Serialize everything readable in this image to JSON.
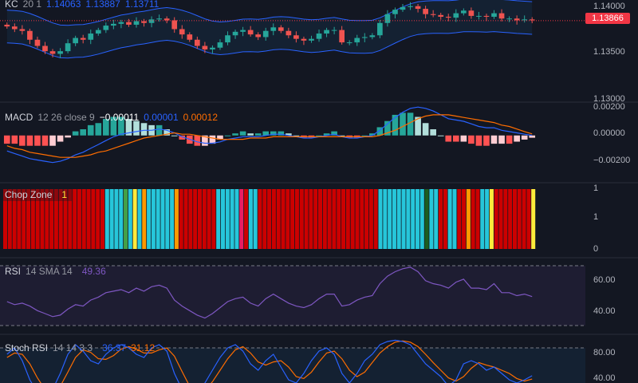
{
  "colors": {
    "background": "#131722",
    "up": "#26a69a",
    "down": "#ef5350",
    "kc_band": "#2962ff",
    "macd_line": "#2962ff",
    "signal_line": "#ff6d00",
    "rsi": "#7e57c2",
    "stoch_k": "#2962ff",
    "stoch_d": "#ff6d00",
    "price_tag": "#f23645"
  },
  "kc_legend": {
    "name": "KC",
    "params": "20 1",
    "upper": "1.14063",
    "basis": "1.13887",
    "lower": "1.13711"
  },
  "price_axis": {
    "labels": [
      "1.14000",
      "1.13500",
      "1.13000"
    ],
    "last_price": "1.13866"
  },
  "macd_legend": {
    "name": "MACD",
    "params": "12 26 close 9",
    "histogram": "−0.00011",
    "macd": "0.00001",
    "signal": "0.00012"
  },
  "macd_axis": {
    "labels": [
      "0.00200",
      "0.00000",
      "−0.00200"
    ]
  },
  "chop_legend": {
    "name": "Chop Zone",
    "value": "1"
  },
  "chop_axis": {
    "labels": [
      "1",
      "1",
      "0"
    ]
  },
  "chop_colors": [
    "#cc0000",
    "#26c6da",
    "#ff9800",
    "#ffeb3b",
    "#43a047",
    "#e91e63",
    "#1b5e20"
  ],
  "rsi_legend": {
    "name": "RSI",
    "params": "14 SMA 14",
    "value": "49.36"
  },
  "rsi_axis": {
    "labels": [
      "60.00",
      "40.00"
    ]
  },
  "stoch_legend": {
    "name": "Stoch RSI",
    "params": "14 14 3 3",
    "k": "36.37",
    "d": "31.12"
  },
  "stoch_axis": {
    "labels": [
      "80.00",
      "40.00"
    ]
  },
  "chart_data": {
    "type": "line",
    "close_series": [
      1.138,
      1.1377,
      1.1375,
      1.1365,
      1.1358,
      1.1352,
      1.1349,
      1.1352,
      1.1361,
      1.1367,
      1.1365,
      1.1372,
      1.1376,
      1.1381,
      1.1383,
      1.1385,
      1.1382,
      1.1386,
      1.1384,
      1.1388,
      1.1389,
      1.1387,
      1.1377,
      1.1371,
      1.1365,
      1.1358,
      1.1354,
      1.1356,
      1.1362,
      1.137,
      1.1374,
      1.1376,
      1.1371,
      1.1368,
      1.1375,
      1.1379,
      1.1375,
      1.137,
      1.1366,
      1.1364,
      1.1366,
      1.1372,
      1.1376,
      1.1376,
      1.1362,
      1.1362,
      1.1367,
      1.1368,
      1.137,
      1.1384,
      1.1394,
      1.1399,
      1.1402,
      1.1403,
      1.14,
      1.1394,
      1.1393,
      1.1391,
      1.139,
      1.1395,
      1.1398,
      1.1392,
      1.1392,
      1.1391,
      1.1395,
      1.1389,
      1.1389,
      1.1387,
      1.1388,
      1.1387
    ],
    "rsi_series": [
      46,
      44,
      45,
      43,
      40,
      38,
      36,
      37,
      41,
      44,
      43,
      47,
      49,
      52,
      53,
      54,
      52,
      55,
      53,
      56,
      57,
      55,
      47,
      43,
      40,
      37,
      35,
      38,
      42,
      46,
      48,
      49,
      45,
      43,
      48,
      51,
      48,
      45,
      43,
      42,
      44,
      48,
      51,
      51,
      43,
      44,
      47,
      49,
      50,
      58,
      63,
      66,
      68,
      69,
      66,
      60,
      58,
      57,
      55,
      59,
      61,
      55,
      55,
      54,
      58,
      52,
      52,
      50,
      51,
      49.36
    ],
    "stoch_k_series": [
      70,
      80,
      60,
      30,
      10,
      5,
      15,
      40,
      70,
      85,
      75,
      60,
      55,
      70,
      80,
      85,
      80,
      70,
      65,
      80,
      85,
      75,
      40,
      15,
      5,
      10,
      25,
      45,
      65,
      80,
      85,
      75,
      55,
      45,
      60,
      70,
      50,
      30,
      25,
      40,
      60,
      75,
      80,
      70,
      40,
      25,
      40,
      60,
      70,
      85,
      90,
      92,
      90,
      85,
      70,
      55,
      45,
      35,
      20,
      30,
      55,
      60,
      55,
      45,
      50,
      40,
      30,
      25,
      30,
      36.37
    ],
    "stoch_d_series": [
      65,
      72,
      70,
      55,
      33,
      15,
      10,
      20,
      42,
      65,
      77,
      73,
      63,
      62,
      68,
      78,
      82,
      78,
      72,
      72,
      77,
      80,
      67,
      43,
      20,
      10,
      13,
      27,
      45,
      63,
      77,
      82,
      72,
      58,
      53,
      58,
      60,
      50,
      35,
      32,
      42,
      58,
      72,
      75,
      63,
      45,
      35,
      42,
      57,
      72,
      82,
      89,
      91,
      89,
      82,
      70,
      57,
      45,
      33,
      28,
      35,
      48,
      57,
      53,
      50,
      45,
      40,
      32,
      28,
      31.12
    ],
    "macd_series": [
      -0.0012,
      -0.0014,
      -0.0016,
      -0.0018,
      -0.0019,
      -0.002,
      -0.0021,
      -0.002,
      -0.0018,
      -0.0015,
      -0.0013,
      -0.001,
      -0.0007,
      -0.0004,
      -0.0001,
      0.0001,
      0.0002,
      0.0003,
      0.0004,
      0.0004,
      0.0005,
      0.0004,
      0.0002,
      -0.0001,
      -0.0003,
      -0.0005,
      -0.0006,
      -0.0006,
      -0.0005,
      -0.0003,
      -0.0002,
      -0.0001,
      -0.0001,
      -0.0001,
      0.0,
      0.0001,
      0.0001,
      0.0,
      -0.0001,
      -0.0002,
      -0.0002,
      -0.0001,
      0.0,
      0.0001,
      -0.0001,
      -0.0002,
      -0.0002,
      -0.0001,
      0.0,
      0.0004,
      0.0009,
      0.0014,
      0.0018,
      0.0021,
      0.0022,
      0.0021,
      0.0019,
      0.0016,
      0.0013,
      0.0012,
      0.0011,
      0.0009,
      0.0007,
      0.0006,
      0.0006,
      0.0004,
      0.0003,
      0.0002,
      0.0001,
      1e-05
    ],
    "signal_series": [
      -0.0008,
      -0.001,
      -0.0011,
      -0.0013,
      -0.0014,
      -0.0015,
      -0.0016,
      -0.0017,
      -0.0017,
      -0.0017,
      -0.0016,
      -0.0015,
      -0.0013,
      -0.0012,
      -0.001,
      -0.0008,
      -0.0006,
      -0.0004,
      -0.0002,
      -0.0001,
      0.0,
      0.0001,
      0.0002,
      0.0001,
      0.0001,
      0.0,
      -0.0001,
      -0.0002,
      -0.0003,
      -0.0003,
      -0.0003,
      -0.0003,
      -0.0002,
      -0.0002,
      -0.0002,
      -0.0001,
      -0.0001,
      -0.0001,
      -0.0001,
      -0.0001,
      -0.0001,
      -0.0001,
      -0.0001,
      -0.0001,
      -0.0001,
      -0.0001,
      -0.0001,
      -0.0001,
      -0.0001,
      0.0,
      0.0002,
      0.0004,
      0.0007,
      0.001,
      0.0013,
      0.0015,
      0.0016,
      0.0016,
      0.0016,
      0.0015,
      0.0014,
      0.0013,
      0.0012,
      0.0011,
      0.001,
      0.0008,
      0.0007,
      0.0005,
      0.0003,
      0.00012
    ]
  }
}
